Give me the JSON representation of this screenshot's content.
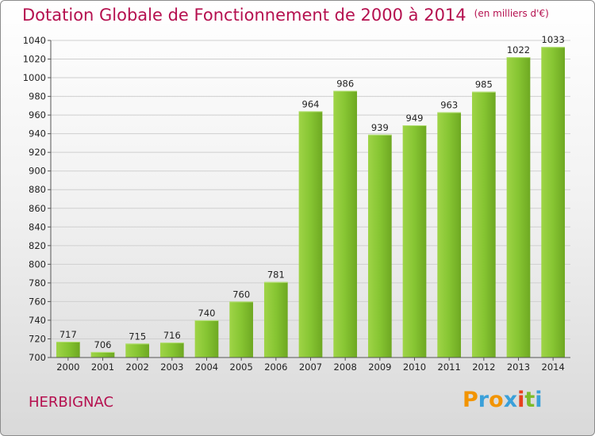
{
  "chart_data": {
    "type": "bar",
    "title": "Dotation Globale de Fonctionnement de 2000 à 2014",
    "subtitle": "(en milliers d'€)",
    "categories": [
      "2000",
      "2001",
      "2002",
      "2003",
      "2004",
      "2005",
      "2006",
      "2007",
      "2008",
      "2009",
      "2010",
      "2011",
      "2012",
      "2013",
      "2014"
    ],
    "values": [
      717,
      706,
      715,
      716,
      740,
      760,
      781,
      964,
      986,
      939,
      949,
      963,
      985,
      1022,
      1033
    ],
    "ylim": [
      700,
      1040
    ],
    "yticks": [
      700,
      720,
      740,
      760,
      780,
      800,
      820,
      840,
      860,
      880,
      900,
      920,
      940,
      960,
      980,
      1000,
      1020,
      1040
    ],
    "grid": true,
    "bar_color": "#7cbb2a"
  },
  "footer": {
    "commune": "HERBIGNAC",
    "logo_letters": [
      "P",
      "r",
      "o",
      "x",
      "i",
      "t",
      "i"
    ],
    "logo_colors": [
      "#f29400",
      "#3aa0d9",
      "#f29400",
      "#3aa0d9",
      "#e8411d",
      "#7cbb2a",
      "#3aa0d9"
    ]
  }
}
